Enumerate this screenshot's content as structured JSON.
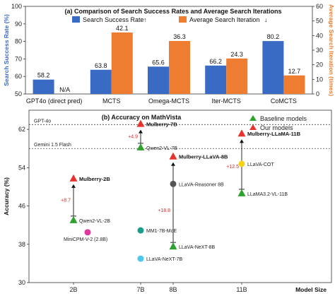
{
  "colors": {
    "success": "#3a6bc4",
    "iteration": "#ee7d31",
    "our_models": "#e8322e",
    "baseline_models": "#2ea12e",
    "gain_text": "#d62728"
  },
  "chart_data": [
    {
      "type": "bar",
      "title": "(a) Comparison of Search Success Rates and Average Search Iterations",
      "categories": [
        "GPT4o (direct pred)",
        "MCTS",
        "Omega-MCTS",
        "Iter-MCTS",
        "CoMCTS"
      ],
      "series": [
        {
          "name": "Search Success Rate",
          "axis": "left",
          "values": [
            58.2,
            63.8,
            65.6,
            66.2,
            80.2
          ],
          "labels": [
            "58.2",
            "63.8",
            "65.6",
            "66.2",
            "80.2"
          ]
        },
        {
          "name": "Average Search Iteration",
          "axis": "right",
          "values": [
            null,
            42.1,
            36.3,
            24.3,
            12.7
          ],
          "labels": [
            "N/A",
            "42.1",
            "36.3",
            "24.3",
            "12.7"
          ]
        }
      ],
      "ylabel": "Search Success Rate (%)",
      "y2label": "Average Search Iteration (times)",
      "ylim": [
        50,
        100
      ],
      "y2lim": [
        0,
        60
      ],
      "yticks": [
        "50",
        "60",
        "70",
        "80",
        "90",
        "100"
      ],
      "y2ticks": [
        "0",
        "10",
        "20",
        "30",
        "40",
        "50",
        "60"
      ],
      "legend_arrow_success": "↑",
      "legend_arrow_iteration": "↓",
      "legend": "top-center",
      "grid": false
    },
    {
      "type": "scatter",
      "title": "(b) Accuracy on MathVista",
      "xlabel": "Model Size",
      "ylabel": "Accuracy (%)",
      "x_categories": [
        "2B",
        "7B",
        "8B",
        "11B"
      ],
      "ylim": [
        30,
        66
      ],
      "yticks": [
        "30",
        "38",
        "46",
        "54",
        "62"
      ],
      "legend": [
        {
          "name": "Baseline models",
          "marker": "triangle",
          "color": "#2ea12e"
        },
        {
          "name": "Our models",
          "marker": "triangle",
          "color": "#e8322e"
        }
      ],
      "reference_lines": [
        {
          "label": "GPT-4o",
          "y": 63.0
        },
        {
          "label": "Gemini 1.5 Flash",
          "y": 58.0
        }
      ],
      "points": [
        {
          "name": "Mulberry-2B",
          "x": "2B",
          "y": 51.7,
          "marker": "triangle",
          "color": "#e8322e",
          "bold": true
        },
        {
          "name": "Qwen2-VL-2B",
          "x": "2B",
          "y": 43.0,
          "marker": "triangle",
          "color": "#2ea12e",
          "bold": false
        },
        {
          "name": "MiniCPM-V-2 (2.8B)",
          "x": "2B",
          "y": 40.5,
          "marker": "circle",
          "color": "#e0389b",
          "bold": false
        },
        {
          "name": "Mulberry-7B",
          "x": "7B",
          "y": 63.1,
          "marker": "triangle",
          "color": "#e8322e",
          "bold": true
        },
        {
          "name": "Qwen2-VL-7B",
          "x": "7B",
          "y": 58.2,
          "marker": "triangle",
          "color": "#2ea12e",
          "bold": false
        },
        {
          "name": "MM1-7B-MoE",
          "x": "7B",
          "y": 40.9,
          "marker": "circle",
          "color": "#1a9e8a",
          "bold": false
        },
        {
          "name": "LLaVA-NeXT-7B",
          "x": "7B",
          "y": 35.0,
          "marker": "circle",
          "color": "#4fc6ee",
          "bold": false
        },
        {
          "name": "Mulberry-LLaVA-8B",
          "x": "8B",
          "y": 56.3,
          "marker": "triangle",
          "color": "#e8322e",
          "bold": true
        },
        {
          "name": "LLaVA-Reasoner 8B",
          "x": "8B",
          "y": 50.6,
          "marker": "circle",
          "color": "#555555",
          "bold": false
        },
        {
          "name": "LLaVA-NeXT-8B",
          "x": "8B",
          "y": 37.5,
          "marker": "triangle",
          "color": "#2ea12e",
          "bold": false
        },
        {
          "name": "Mulberry-LLaMA-11B",
          "x": "11B",
          "y": 61.1,
          "marker": "triangle",
          "color": "#e8322e",
          "bold": true
        },
        {
          "name": "LLaVA-COT",
          "x": "11B",
          "y": 54.8,
          "marker": "circle",
          "color": "#f5d21a",
          "bold": false
        },
        {
          "name": "LLaMA3.2-VL-11B",
          "x": "11B",
          "y": 48.6,
          "marker": "triangle",
          "color": "#2ea12e",
          "bold": false
        }
      ],
      "gains": [
        {
          "x": "2B",
          "from": 43.0,
          "to": 51.7,
          "label": "+8.7"
        },
        {
          "x": "7B",
          "from": 58.2,
          "to": 63.1,
          "label": "+4.9"
        },
        {
          "x": "8B",
          "from": 37.5,
          "to": 56.3,
          "label": "+18.8"
        },
        {
          "x": "11B",
          "from": 48.6,
          "to": 61.1,
          "label": "+12.5"
        }
      ]
    }
  ]
}
